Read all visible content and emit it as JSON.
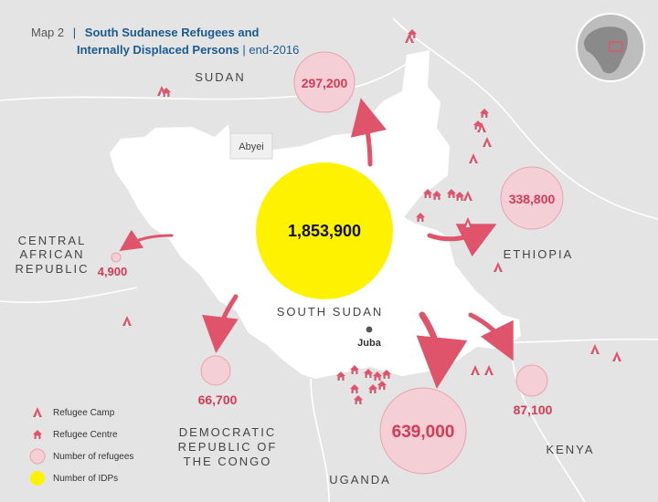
{
  "header": {
    "map_number": "Map 2",
    "title_line1": "South Sudanese Refugees and",
    "title_line2": "Internally Displaced Persons",
    "date": "end-2016"
  },
  "countries": {
    "sudan": "SUDAN",
    "abyei": "Abyei",
    "car_line1": "CENTRAL",
    "car_line2": "AFRICAN",
    "car_line3": "REPUBLIC",
    "ethiopia": "ETHIOPIA",
    "south_sudan": "SOUTH SUDAN",
    "drc_line1": "DEMOCRATIC",
    "drc_line2": "REPUBLIC OF",
    "drc_line3": "THE CONGO",
    "uganda": "UGANDA",
    "kenya": "KENYA"
  },
  "capital": "Juba",
  "figures": {
    "idps": "1,853,900",
    "sudan": "297,200",
    "ethiopia": "338,800",
    "car": "4,900",
    "drc": "66,700",
    "uganda": "639,000",
    "kenya": "87,100"
  },
  "legend": {
    "camp": "Refugee Camp",
    "centre": "Refugee Centre",
    "refugees": "Number of refugees",
    "idps": "Number of IDPs"
  },
  "colors": {
    "background": "#e4e4e4",
    "land": "#ffffff",
    "accent": "#e0546b",
    "circle_fill": "#f4cfd5",
    "idp": "#fff200",
    "title_blue": "#1a5a8e"
  }
}
